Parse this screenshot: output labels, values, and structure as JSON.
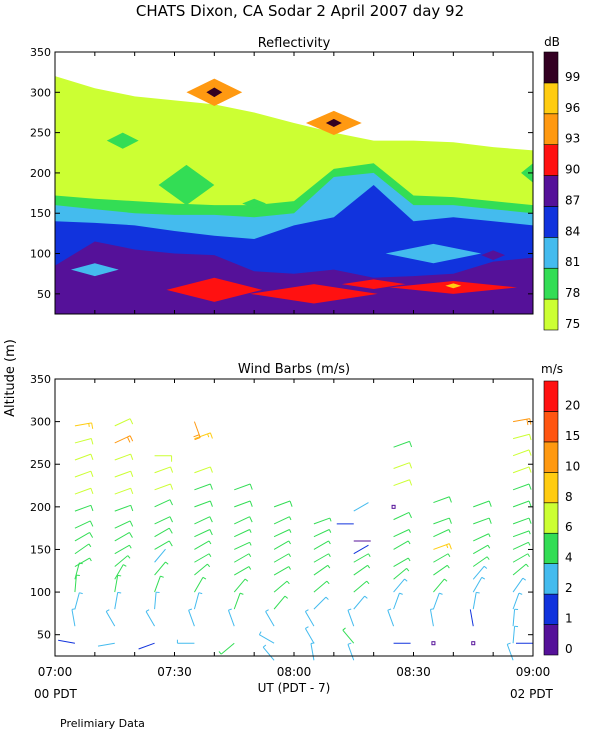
{
  "page": {
    "title": "CHATS Dixon, CA  Sodar    2 April 2007   day  92",
    "footer_note": "Prelimiary Data",
    "x_axis_label": "UT  (PDT - 7)",
    "y_axis_label": "Altitude  (m)",
    "start_label": "00 PDT",
    "end_label": "02 PDT"
  },
  "chart_data": [
    {
      "type": "heatmap",
      "title": "Reflectivity",
      "legend_title": "dB",
      "legend_placement": "right",
      "ylim": [
        25,
        350
      ],
      "xlim_minutes": [
        0,
        120
      ],
      "x_ticks": [
        "07:00",
        "07:30",
        "08:00",
        "08:30",
        "09:00"
      ],
      "y_ticks": [
        50,
        100,
        150,
        200,
        250,
        300,
        350
      ],
      "legend_levels": [
        75,
        78,
        81,
        84,
        87,
        90,
        93,
        96,
        99
      ],
      "legend_colors": [
        "#ccff33",
        "#33dd55",
        "#44bbee",
        "#1133dd",
        "#551199",
        "#ff1111",
        "#ff9911",
        "#ffcc11",
        "#330022"
      ],
      "colors": {
        "c75": "#ccff33",
        "c78": "#33dd55",
        "c81": "#44bbee",
        "c84": "#1133dd",
        "c87": "#551199",
        "c90": "#ff1111",
        "c93": "#ff9911",
        "c96": "#ffcc11",
        "c99": "#330022"
      },
      "bands": [
        {
          "level": 75,
          "top": [
            [
              0,
              320
            ],
            [
              10,
              305
            ],
            [
              20,
              295
            ],
            [
              30,
              290
            ],
            [
              40,
              285
            ],
            [
              50,
              275
            ],
            [
              60,
              262
            ],
            [
              70,
              250
            ],
            [
              75,
              245
            ],
            [
              80,
              240
            ],
            [
              90,
              240
            ],
            [
              100,
              238
            ],
            [
              110,
              232
            ],
            [
              120,
              228
            ]
          ]
        },
        {
          "level": 78,
          "top": [
            [
              0,
              172
            ],
            [
              10,
              168
            ],
            [
              20,
              165
            ],
            [
              30,
              162
            ],
            [
              40,
              160
            ],
            [
              50,
              160
            ],
            [
              60,
              165
            ],
            [
              70,
              205
            ],
            [
              80,
              212
            ],
            [
              90,
              172
            ],
            [
              100,
              170
            ],
            [
              110,
              165
            ],
            [
              120,
              160
            ]
          ]
        },
        {
          "level": 81,
          "top": [
            [
              0,
              160
            ],
            [
              10,
              155
            ],
            [
              20,
              150
            ],
            [
              30,
              148
            ],
            [
              40,
              148
            ],
            [
              50,
              145
            ],
            [
              60,
              150
            ],
            [
              70,
              195
            ],
            [
              80,
              200
            ],
            [
              90,
              160
            ],
            [
              100,
              160
            ],
            [
              110,
              155
            ],
            [
              120,
              150
            ]
          ]
        },
        {
          "level": 84,
          "top": [
            [
              0,
              140
            ],
            [
              10,
              138
            ],
            [
              20,
              135
            ],
            [
              30,
              128
            ],
            [
              40,
              122
            ],
            [
              50,
              118
            ],
            [
              60,
              135
            ],
            [
              70,
              145
            ],
            [
              80,
              185
            ],
            [
              90,
              140
            ],
            [
              100,
              145
            ],
            [
              110,
              140
            ],
            [
              120,
              135
            ]
          ]
        },
        {
          "level": 87,
          "top": [
            [
              0,
              85
            ],
            [
              10,
              115
            ],
            [
              20,
              105
            ],
            [
              30,
              100
            ],
            [
              40,
              98
            ],
            [
              50,
              78
            ],
            [
              60,
              75
            ],
            [
              70,
              80
            ],
            [
              80,
              70
            ],
            [
              90,
              72
            ],
            [
              100,
              75
            ],
            [
              110,
              90
            ],
            [
              120,
              95
            ]
          ]
        }
      ],
      "patches": [
        {
          "level": 78,
          "center": [
            33,
            185
          ],
          "rx_min": 7,
          "ry": 25
        },
        {
          "level": 78,
          "center": [
            17,
            240
          ],
          "rx_min": 4,
          "ry": 10
        },
        {
          "level": 78,
          "center": [
            50,
            162
          ],
          "rx_min": 3,
          "ry": 6
        },
        {
          "level": 78,
          "center": [
            120,
            200
          ],
          "rx_min": 3,
          "ry": 12
        },
        {
          "level": 81,
          "center": [
            10,
            80
          ],
          "rx_min": 6,
          "ry": 8
        },
        {
          "level": 81,
          "center": [
            95,
            100
          ],
          "rx_min": 12,
          "ry": 12
        },
        {
          "level": 87,
          "center": [
            110,
            98
          ],
          "rx_min": 3,
          "ry": 6
        },
        {
          "level": 90,
          "center": [
            40,
            55
          ],
          "rx_min": 12,
          "ry": 15
        },
        {
          "level": 90,
          "center": [
            65,
            50
          ],
          "rx_min": 16,
          "ry": 12
        },
        {
          "level": 90,
          "center": [
            80,
            62
          ],
          "rx_min": 8,
          "ry": 6
        },
        {
          "level": 90,
          "center": [
            100,
            58
          ],
          "rx_min": 16,
          "ry": 8
        },
        {
          "level": 96,
          "center": [
            100,
            60
          ],
          "rx_min": 2,
          "ry": 3
        },
        {
          "level": 93,
          "center": [
            40,
            300
          ],
          "rx_min": 7,
          "ry": 17
        },
        {
          "level": 99,
          "center": [
            40,
            300
          ],
          "rx_min": 2,
          "ry": 6
        },
        {
          "level": 93,
          "center": [
            70,
            262
          ],
          "rx_min": 7,
          "ry": 15
        },
        {
          "level": 99,
          "center": [
            70,
            262
          ],
          "rx_min": 2,
          "ry": 5
        }
      ]
    },
    {
      "type": "scatter",
      "title": "Wind Barbs (m/s)",
      "legend_title": "m/s",
      "legend_placement": "right",
      "ylim": [
        25,
        350
      ],
      "xlim_minutes": [
        0,
        120
      ],
      "x_ticks": [
        "07:00",
        "07:30",
        "08:00",
        "08:30",
        "09:00"
      ],
      "y_ticks": [
        50,
        100,
        150,
        200,
        250,
        300,
        350
      ],
      "legend_levels": [
        0,
        1,
        2,
        4,
        6,
        8,
        10,
        15,
        20
      ],
      "legend_colors": [
        "#551199",
        "#1133dd",
        "#44bbee",
        "#33dd55",
        "#ccff33",
        "#ffcc11",
        "#ff9911",
        "#ff5511",
        "#ff1111"
      ],
      "profiles": [
        {
          "minute": 5,
          "heights": [
            40,
            60,
            80,
            100,
            115,
            130,
            145,
            160,
            175,
            195,
            215,
            235,
            255,
            275,
            295
          ],
          "speeds": [
            1.5,
            3,
            3,
            4,
            4,
            4,
            4,
            5,
            5,
            5,
            6,
            6,
            6,
            7,
            8
          ],
          "dirs": [
            280,
            350,
            15,
            5,
            15,
            60,
            55,
            60,
            65,
            70,
            70,
            70,
            70,
            75,
            80
          ]
        },
        {
          "minute": 15,
          "heights": [
            40,
            60,
            80,
            100,
            115,
            130,
            145,
            160,
            175,
            195,
            215,
            235,
            255,
            275,
            295
          ],
          "speeds": [
            2,
            3,
            3,
            4,
            4,
            4,
            4,
            5,
            5,
            5,
            6,
            6,
            6,
            10,
            7
          ],
          "dirs": [
            260,
            330,
            10,
            10,
            30,
            50,
            60,
            60,
            65,
            70,
            70,
            70,
            70,
            65,
            65
          ]
        },
        {
          "minute": 25,
          "heights": [
            40,
            60,
            80,
            100,
            120,
            135,
            150,
            165,
            180,
            200,
            220,
            240,
            260
          ],
          "speeds": [
            1,
            3,
            3,
            4,
            4,
            2,
            5,
            5,
            5,
            5,
            6,
            6,
            7
          ],
          "dirs": [
            250,
            330,
            5,
            20,
            40,
            40,
            60,
            60,
            65,
            65,
            70,
            70,
            90
          ]
        },
        {
          "minute": 35,
          "heights": [
            40,
            60,
            80,
            100,
            120,
            135,
            150,
            165,
            180,
            200,
            220,
            240,
            280,
            300
          ],
          "speeds": [
            3,
            3,
            3,
            4,
            4,
            4,
            4,
            5,
            5,
            5,
            5,
            6,
            8,
            10
          ],
          "dirs": [
            270,
            340,
            15,
            30,
            50,
            60,
            60,
            65,
            65,
            70,
            70,
            70,
            70,
            160
          ]
        },
        {
          "minute": 45,
          "heights": [
            40,
            60,
            80,
            100,
            120,
            135,
            150,
            165,
            180,
            200,
            220
          ],
          "speeds": [
            4,
            3,
            4,
            4,
            4,
            4,
            4,
            4,
            5,
            5,
            5
          ],
          "dirs": [
            230,
            340,
            20,
            40,
            60,
            60,
            65,
            65,
            65,
            70,
            70
          ]
        },
        {
          "minute": 55,
          "heights": [
            20,
            40,
            60,
            80,
            100,
            120,
            135,
            150,
            165,
            180,
            200
          ],
          "speeds": [
            3,
            3,
            3,
            4,
            4,
            4,
            4,
            4,
            4,
            4,
            5
          ],
          "dirs": [
            320,
            300,
            330,
            40,
            50,
            60,
            60,
            60,
            65,
            65,
            70
          ]
        },
        {
          "minute": 65,
          "heights": [
            20,
            40,
            60,
            80,
            100,
            120,
            135,
            150,
            165,
            180
          ],
          "speeds": [
            3,
            3,
            3,
            3,
            4,
            4,
            4,
            4,
            4,
            4
          ],
          "dirs": [
            350,
            330,
            330,
            45,
            50,
            55,
            60,
            60,
            65,
            70
          ]
        },
        {
          "minute": 75,
          "heights": [
            20,
            40,
            60,
            80,
            100,
            120,
            135,
            145,
            160,
            180,
            195
          ],
          "speeds": [
            3,
            4,
            3,
            3,
            4,
            4,
            4,
            1.5,
            0.5,
            1,
            2
          ],
          "dirs": [
            340,
            320,
            340,
            40,
            50,
            55,
            60,
            60,
            90,
            270,
            60
          ]
        },
        {
          "minute": 85,
          "heights": [
            40,
            60,
            80,
            100,
            115,
            130,
            150,
            165,
            185,
            200,
            225,
            245,
            270
          ],
          "speeds": [
            1,
            3,
            3,
            3,
            4,
            4,
            4,
            4,
            5,
            0,
            6,
            6,
            5
          ],
          "dirs": [
            90,
            340,
            20,
            40,
            50,
            60,
            60,
            65,
            65,
            0,
            70,
            70,
            70
          ]
        },
        {
          "minute": 95,
          "heights": [
            40,
            60,
            80,
            100,
            120,
            135,
            150,
            165,
            180,
            205
          ],
          "speeds": [
            0,
            3,
            3,
            4,
            4,
            4,
            9,
            4,
            5,
            5
          ],
          "dirs": [
            0,
            350,
            20,
            40,
            55,
            60,
            70,
            65,
            70,
            70
          ]
        },
        {
          "minute": 105,
          "heights": [
            40,
            60,
            80,
            100,
            115,
            130,
            145,
            160,
            180,
            200
          ],
          "speeds": [
            0,
            1.5,
            3,
            3,
            3,
            4,
            4,
            4,
            5,
            5
          ],
          "dirs": [
            0,
            350,
            10,
            30,
            40,
            55,
            60,
            65,
            70,
            70
          ]
        },
        {
          "minute": 115,
          "heights": [
            20,
            40,
            60,
            80,
            100,
            120,
            135,
            150,
            165,
            180,
            200,
            220,
            240,
            260,
            280,
            300
          ],
          "speeds": [
            3,
            3,
            3,
            3,
            3,
            4,
            4,
            4,
            4,
            5,
            5,
            5,
            6,
            6,
            7,
            10
          ],
          "dirs": [
            340,
            5,
            5,
            20,
            35,
            50,
            60,
            65,
            70,
            70,
            70,
            70,
            70,
            70,
            75,
            80
          ]
        },
        {
          "minute": 120,
          "heights": [
            40
          ],
          "speeds": [
            1
          ],
          "dirs": [
            270
          ]
        }
      ]
    }
  ]
}
